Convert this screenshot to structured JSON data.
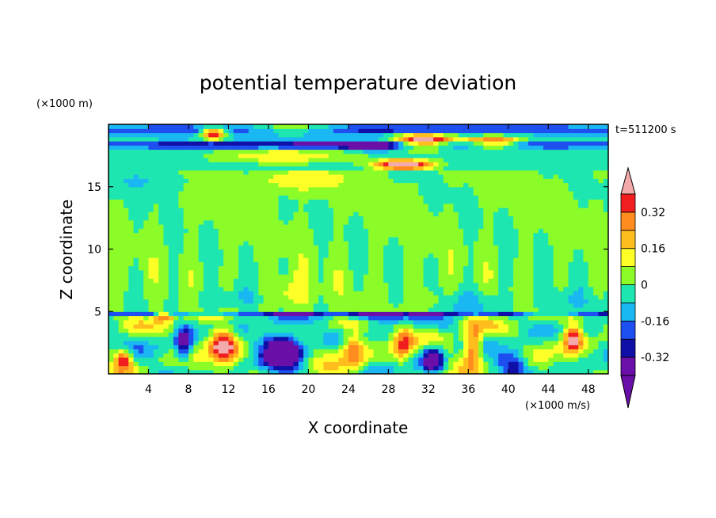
{
  "chart_data": {
    "type": "heatmap",
    "title": "potential temperature deviation",
    "xlabel": "X coordinate",
    "ylabel": "Z coordinate",
    "x_unit": "(×1000 m/s)",
    "y_unit": "(×1000 m)",
    "time_label": "t=511200 s",
    "xlim": [
      0,
      50
    ],
    "ylim": [
      0,
      20
    ],
    "x_ticks": [
      4,
      8,
      12,
      16,
      20,
      24,
      28,
      32,
      36,
      40,
      44,
      48
    ],
    "y_ticks": [
      5,
      10,
      15
    ],
    "colorbar": {
      "levels": [
        -0.4,
        -0.32,
        -0.24,
        -0.16,
        -0.08,
        0,
        0.08,
        0.16,
        0.24,
        0.32,
        0.4
      ],
      "tick_labels": [
        "0.32",
        "0.16",
        "0",
        "-0.16",
        "-0.32"
      ],
      "tick_values": [
        0.32,
        0.16,
        0,
        -0.16,
        -0.32
      ],
      "colors": [
        "#6a0fa8",
        "#1010a8",
        "#1e4ff0",
        "#1ab8f2",
        "#1ee6b0",
        "#8cfc28",
        "#ffff28",
        "#ffbe1e",
        "#ff8c1e",
        "#f01e1e"
      ],
      "over_color": "#f4aaaa",
      "under_color": "#6a0fa8",
      "extend": "both"
    }
  }
}
